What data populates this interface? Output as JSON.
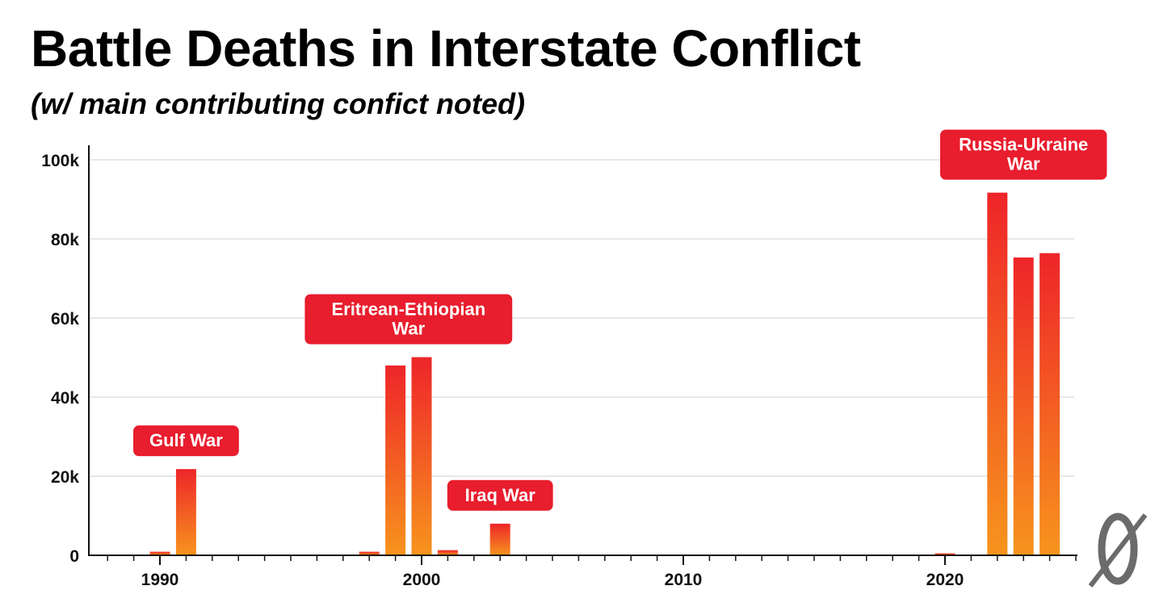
{
  "header": {
    "title": "Battle Deaths in Interstate Conflict",
    "subtitle": "(w/ main contributing confict noted)"
  },
  "colors": {
    "bar_top": "#ee2529",
    "bar_bottom": "#f7941d",
    "annotation_bg": "#e81d2d",
    "grid": "#d9d9d9",
    "axis": "#111111"
  },
  "chart_data": {
    "type": "bar",
    "title": "Battle Deaths in Interstate Conflict",
    "subtitle": "(w/ main contributing confict noted)",
    "xlabel": "",
    "ylabel": "",
    "xlim": [
      1988,
      2025
    ],
    "ylim": [
      0,
      100000
    ],
    "x_ticks": [
      {
        "value": 1990,
        "label": "1990"
      },
      {
        "value": 2000,
        "label": "2000"
      },
      {
        "value": 2010,
        "label": "2010"
      },
      {
        "value": 2020,
        "label": "2020"
      }
    ],
    "y_ticks": [
      {
        "value": 0,
        "label": "0"
      },
      {
        "value": 20000,
        "label": "20k"
      },
      {
        "value": 40000,
        "label": "40k"
      },
      {
        "value": 60000,
        "label": "60k"
      },
      {
        "value": 80000,
        "label": "80k"
      },
      {
        "value": 100000,
        "label": "100k"
      }
    ],
    "grid": true,
    "x": [
      1990,
      1991,
      1998,
      1999,
      2000,
      2001,
      2003,
      2012,
      2019,
      2020,
      2022,
      2023,
      2024
    ],
    "values": [
      900,
      21800,
      900,
      48000,
      50100,
      1300,
      8000,
      150,
      200,
      500,
      91700,
      75300,
      76400
    ],
    "annotations": [
      {
        "text": [
          "Gulf War"
        ],
        "x": 1991,
        "value": 21800
      },
      {
        "text": [
          "Eritrean-Ethiopian",
          "War"
        ],
        "x": 1999.5,
        "value": 50100
      },
      {
        "text": [
          "Iraq War"
        ],
        "x": 2003,
        "value": 8000
      },
      {
        "text": [
          "Russia-Ukraine",
          "War"
        ],
        "x": 2023,
        "value": 91700
      }
    ]
  }
}
